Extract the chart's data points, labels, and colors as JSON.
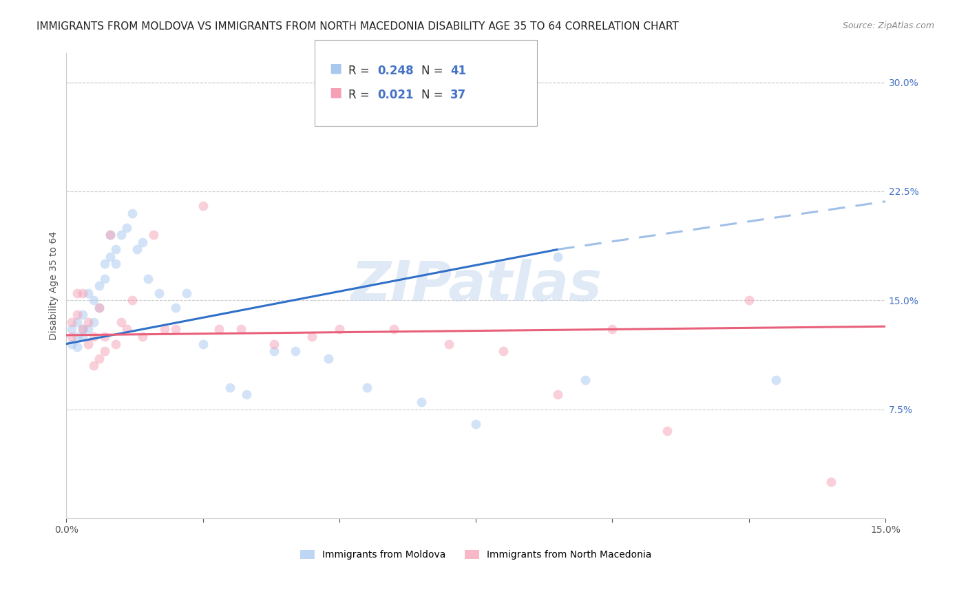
{
  "title": "IMMIGRANTS FROM MOLDOVA VS IMMIGRANTS FROM NORTH MACEDONIA DISABILITY AGE 35 TO 64 CORRELATION CHART",
  "source": "Source: ZipAtlas.com",
  "ylabel": "Disability Age 35 to 64",
  "x_min": 0.0,
  "x_max": 0.15,
  "y_min": 0.0,
  "y_max": 0.32,
  "y_ticks": [
    0.075,
    0.15,
    0.225,
    0.3
  ],
  "y_tick_labels": [
    "7.5%",
    "15.0%",
    "22.5%",
    "30.0%"
  ],
  "x_ticks": [
    0.0,
    0.025,
    0.05,
    0.075,
    0.1,
    0.125,
    0.15
  ],
  "x_tick_labels": [
    "0.0%",
    "",
    "",
    "",
    "",
    "",
    "15.0%"
  ],
  "color_moldova": "#a8c8f0",
  "color_north_macedonia": "#f5a0b5",
  "color_moldova_line": "#3070c8",
  "color_north_macedonia_line": "#e8607a",
  "color_moldova_dashed": "#a0c0e8",
  "moldova_x": [
    0.001,
    0.001,
    0.002,
    0.002,
    0.002,
    0.003,
    0.003,
    0.003,
    0.004,
    0.004,
    0.005,
    0.005,
    0.006,
    0.006,
    0.007,
    0.007,
    0.008,
    0.008,
    0.009,
    0.009,
    0.01,
    0.011,
    0.012,
    0.013,
    0.014,
    0.015,
    0.017,
    0.02,
    0.022,
    0.025,
    0.03,
    0.033,
    0.038,
    0.042,
    0.048,
    0.055,
    0.065,
    0.075,
    0.09,
    0.095,
    0.13
  ],
  "moldova_y": [
    0.13,
    0.12,
    0.125,
    0.118,
    0.135,
    0.13,
    0.14,
    0.125,
    0.155,
    0.13,
    0.15,
    0.135,
    0.16,
    0.145,
    0.165,
    0.175,
    0.18,
    0.195,
    0.175,
    0.185,
    0.195,
    0.2,
    0.21,
    0.185,
    0.19,
    0.165,
    0.155,
    0.145,
    0.155,
    0.12,
    0.09,
    0.085,
    0.115,
    0.115,
    0.11,
    0.09,
    0.08,
    0.065,
    0.18,
    0.095,
    0.095
  ],
  "north_macedonia_x": [
    0.001,
    0.001,
    0.002,
    0.002,
    0.003,
    0.003,
    0.004,
    0.004,
    0.005,
    0.005,
    0.006,
    0.006,
    0.007,
    0.007,
    0.008,
    0.009,
    0.01,
    0.011,
    0.012,
    0.014,
    0.016,
    0.018,
    0.02,
    0.025,
    0.028,
    0.032,
    0.038,
    0.045,
    0.05,
    0.06,
    0.07,
    0.08,
    0.09,
    0.1,
    0.11,
    0.125,
    0.14
  ],
  "north_macedonia_y": [
    0.135,
    0.125,
    0.155,
    0.14,
    0.155,
    0.13,
    0.12,
    0.135,
    0.125,
    0.105,
    0.145,
    0.11,
    0.125,
    0.115,
    0.195,
    0.12,
    0.135,
    0.13,
    0.15,
    0.125,
    0.195,
    0.13,
    0.13,
    0.215,
    0.13,
    0.13,
    0.12,
    0.125,
    0.13,
    0.13,
    0.12,
    0.115,
    0.085,
    0.13,
    0.06,
    0.15,
    0.025
  ],
  "title_fontsize": 11,
  "source_fontsize": 9,
  "axis_label_fontsize": 10,
  "tick_fontsize": 10,
  "legend_fontsize": 12,
  "marker_size": 100,
  "marker_alpha": 0.5,
  "line_width": 2.2,
  "background_color": "#ffffff",
  "grid_color": "#cccccc"
}
